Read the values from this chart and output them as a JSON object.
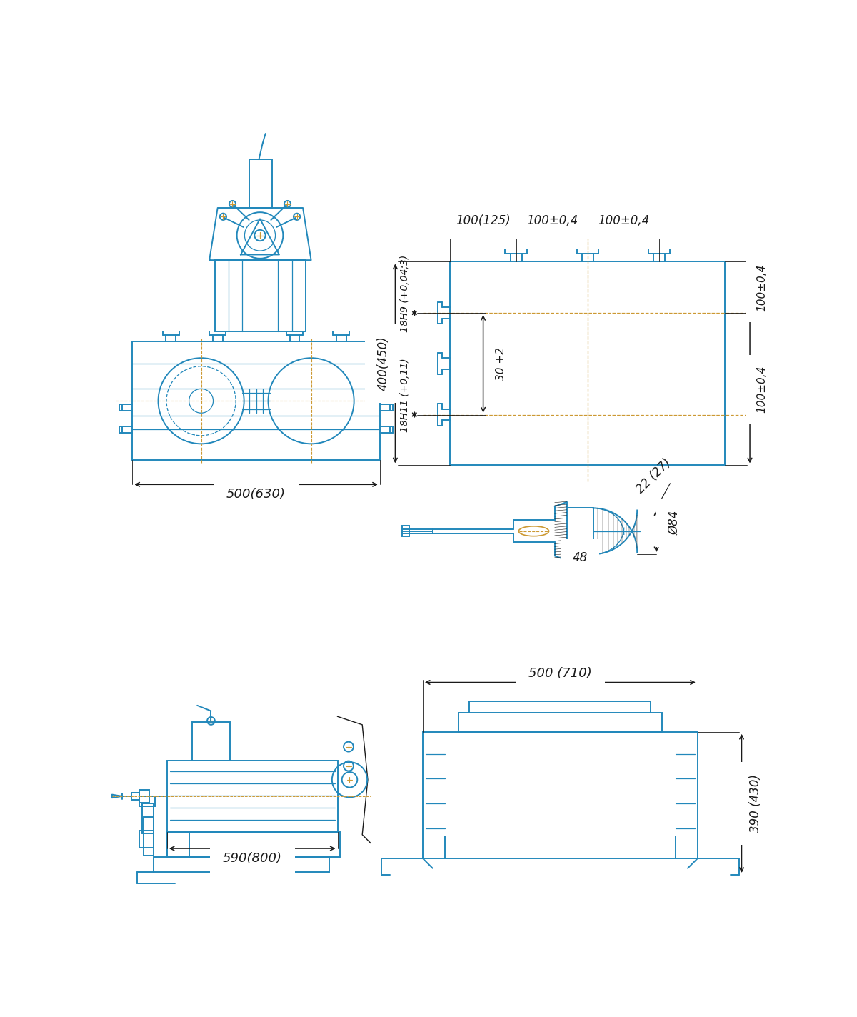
{
  "bg_color": "#ffffff",
  "blue": "#2288bb",
  "orange": "#cc9933",
  "black": "#1a1a1a",
  "dims": {
    "top_view_width": "500(630)",
    "side_view_width": "590(800)",
    "table_width": "100(125)",
    "table_slot1": "100±0,4",
    "table_slot2": "100±0,4",
    "table_height": "400(450)",
    "table_h9": "18H9 (+0,04;3)",
    "table_h11": "18H11 (+0,11)",
    "table_slot_depth": "30 +2",
    "table_right1": "100±0,4",
    "table_right2": "100±0,4",
    "spindle_len": "48",
    "spindle_diam": "Ø84",
    "spindle_depth": "22 (27)",
    "base_width": "500 (710)",
    "base_height": "390 (430)"
  }
}
